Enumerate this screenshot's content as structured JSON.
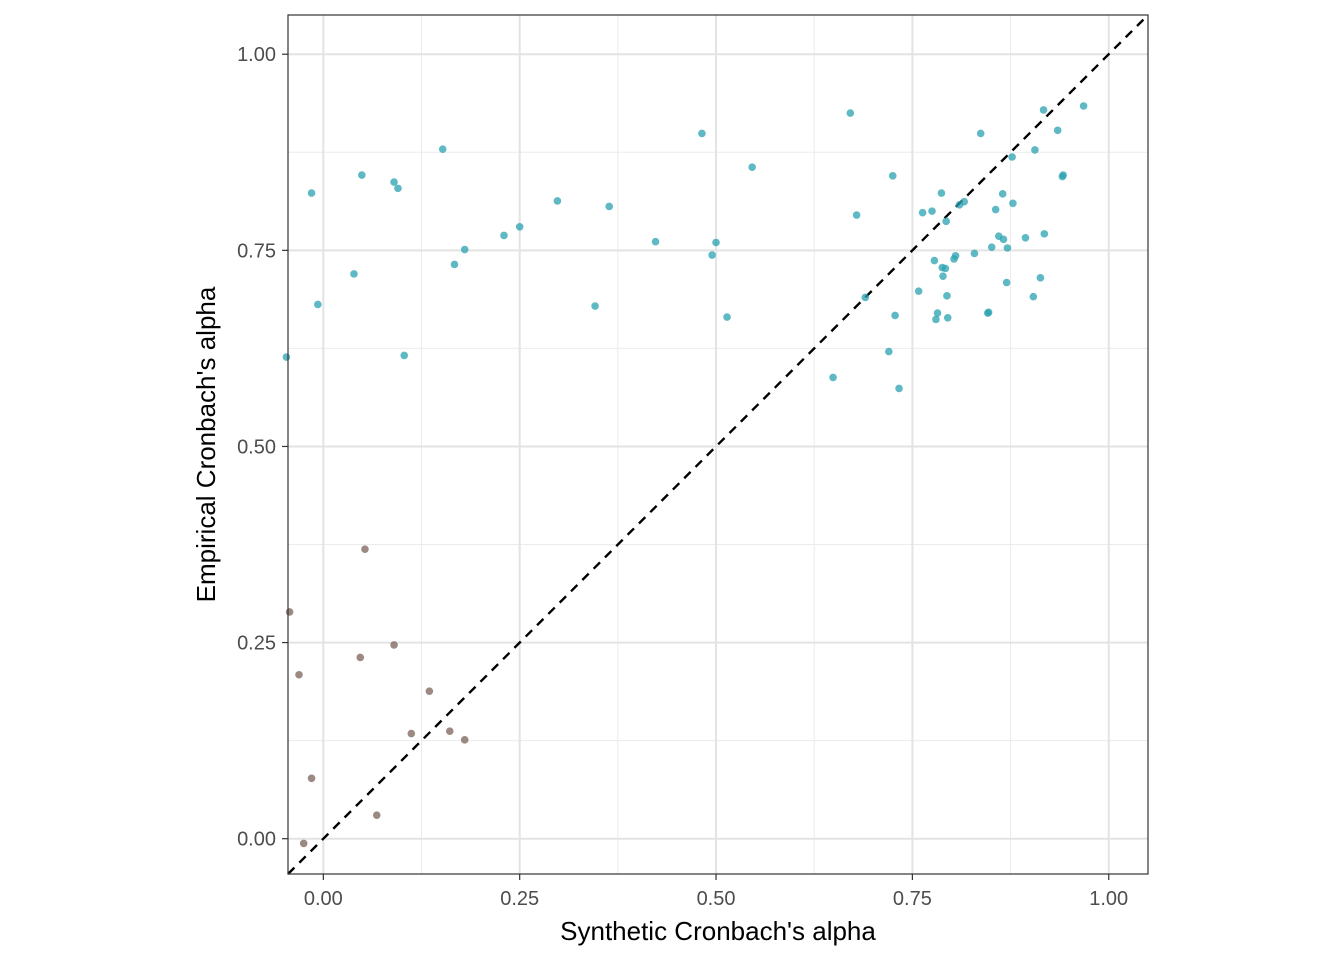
{
  "chart_data": {
    "type": "scatter",
    "title": "",
    "xlabel": "Synthetic Cronbach's alpha",
    "ylabel": "Empirical Cronbach's alpha",
    "xlim": [
      -0.045,
      1.05
    ],
    "ylim": [
      -0.045,
      1.05
    ],
    "x_ticks": [
      0,
      0.25,
      0.5,
      0.75,
      1
    ],
    "x_tick_labels": [
      "0.00",
      "0.25",
      "0.50",
      "0.75",
      "1.00"
    ],
    "y_ticks": [
      0,
      0.25,
      0.5,
      0.75,
      1
    ],
    "y_tick_labels": [
      "0.00",
      "0.25",
      "0.50",
      "0.75",
      "1.00"
    ],
    "grid": true,
    "legend": "none",
    "reference_line": {
      "style": "dashed",
      "slope": 1,
      "intercept": 0,
      "color": "#000000"
    },
    "series": [
      {
        "color": "#2aa1b0",
        "points": [
          [
            -0.047,
            0.614
          ],
          [
            -0.015,
            0.823
          ],
          [
            -0.007,
            0.681
          ],
          [
            0.039,
            0.72
          ],
          [
            0.049,
            0.846
          ],
          [
            0.09,
            0.837
          ],
          [
            0.095,
            0.829
          ],
          [
            0.103,
            0.616
          ],
          [
            0.152,
            0.879
          ],
          [
            0.167,
            0.732
          ],
          [
            0.18,
            0.751
          ],
          [
            0.23,
            0.769
          ],
          [
            0.25,
            0.78
          ],
          [
            0.298,
            0.813
          ],
          [
            0.346,
            0.679
          ],
          [
            0.364,
            0.806
          ],
          [
            0.423,
            0.761
          ],
          [
            0.482,
            0.899
          ],
          [
            0.495,
            0.744
          ],
          [
            0.5,
            0.76
          ],
          [
            0.514,
            0.665
          ],
          [
            0.546,
            0.856
          ],
          [
            0.649,
            0.588
          ],
          [
            0.671,
            0.925
          ],
          [
            0.679,
            0.795
          ],
          [
            0.69,
            0.69
          ],
          [
            0.72,
            0.621
          ],
          [
            0.725,
            0.845
          ],
          [
            0.728,
            0.667
          ],
          [
            0.733,
            0.574
          ],
          [
            0.758,
            0.698
          ],
          [
            0.763,
            0.798
          ],
          [
            0.775,
            0.8
          ],
          [
            0.778,
            0.737
          ],
          [
            0.78,
            0.662
          ],
          [
            0.782,
            0.67
          ],
          [
            0.787,
            0.823
          ],
          [
            0.788,
            0.728
          ],
          [
            0.789,
            0.717
          ],
          [
            0.792,
            0.727
          ],
          [
            0.793,
            0.787
          ],
          [
            0.794,
            0.692
          ],
          [
            0.795,
            0.664
          ],
          [
            0.803,
            0.739
          ],
          [
            0.805,
            0.743
          ],
          [
            0.81,
            0.808
          ],
          [
            0.816,
            0.812
          ],
          [
            0.829,
            0.746
          ],
          [
            0.837,
            0.899
          ],
          [
            0.846,
            0.67
          ],
          [
            0.847,
            0.671
          ],
          [
            0.851,
            0.754
          ],
          [
            0.856,
            0.802
          ],
          [
            0.86,
            0.768
          ],
          [
            0.865,
            0.822
          ],
          [
            0.866,
            0.764
          ],
          [
            0.87,
            0.709
          ],
          [
            0.871,
            0.753
          ],
          [
            0.877,
            0.869
          ],
          [
            0.878,
            0.81
          ],
          [
            0.894,
            0.766
          ],
          [
            0.904,
            0.691
          ],
          [
            0.906,
            0.878
          ],
          [
            0.913,
            0.715
          ],
          [
            0.917,
            0.929
          ],
          [
            0.918,
            0.771
          ],
          [
            0.935,
            0.903
          ],
          [
            0.941,
            0.844
          ],
          [
            0.942,
            0.846
          ],
          [
            0.968,
            0.934
          ]
        ]
      },
      {
        "color": "#7b6358",
        "points": [
          [
            -0.043,
            0.289
          ],
          [
            -0.031,
            0.209
          ],
          [
            -0.025,
            -0.006
          ],
          [
            -0.015,
            0.077
          ],
          [
            0.047,
            0.231
          ],
          [
            0.053,
            0.369
          ],
          [
            0.068,
            0.03
          ],
          [
            0.09,
            0.247
          ],
          [
            0.112,
            0.134
          ],
          [
            0.135,
            0.188
          ],
          [
            0.161,
            0.137
          ],
          [
            0.18,
            0.126
          ]
        ]
      }
    ]
  }
}
